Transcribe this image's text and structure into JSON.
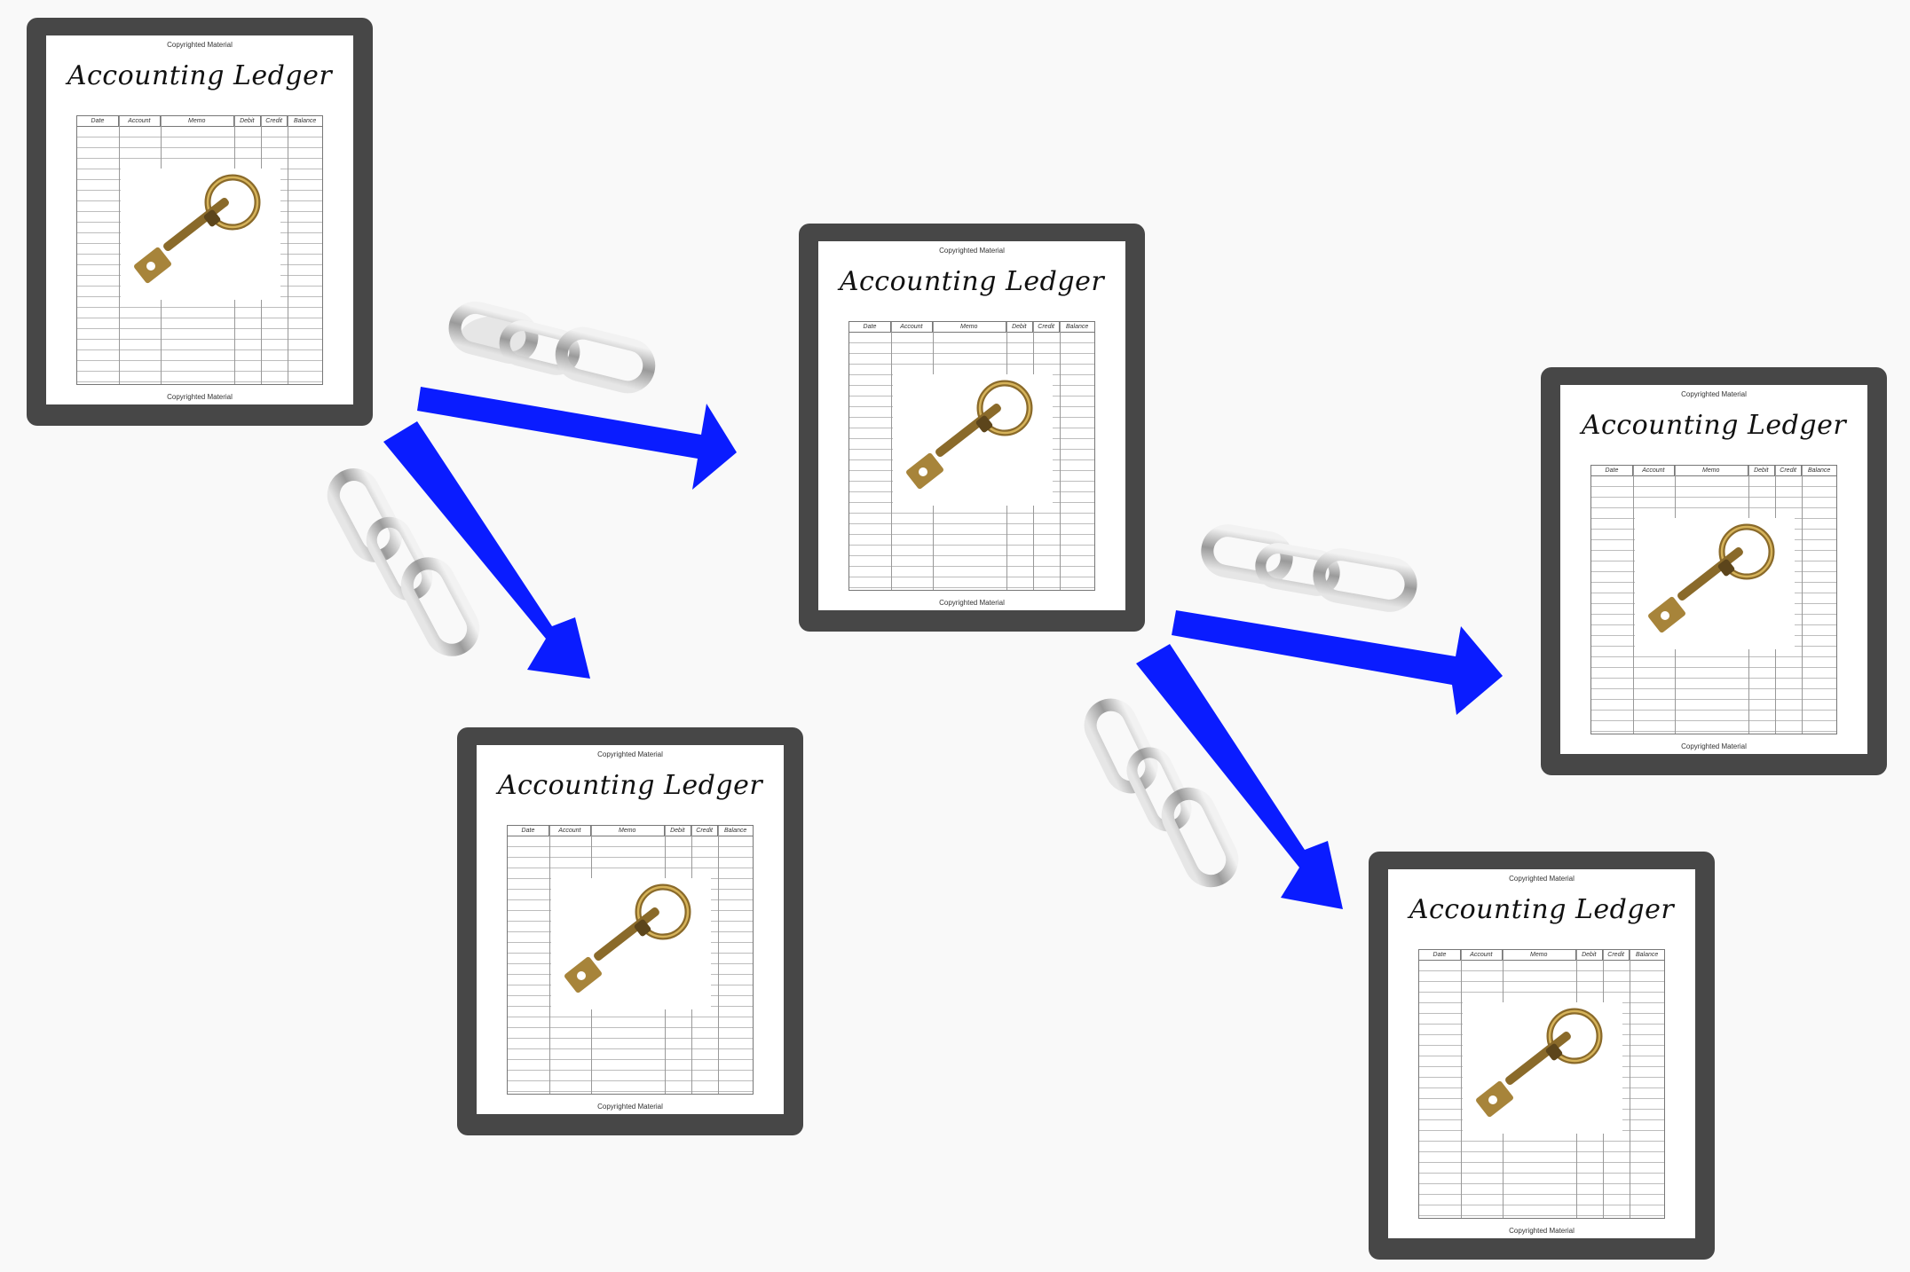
{
  "ledger": {
    "copyright": "Copyrighted Material",
    "title": "Accounting Ledger",
    "columns": [
      "Date",
      "Account",
      "Memo",
      "Debit",
      "Credit",
      "Balance"
    ]
  },
  "colors": {
    "arrow": "#0a1cff",
    "frame": "#474747",
    "chain": "#b8b8b8",
    "key": "#8a6a2a"
  },
  "icons": [
    "key-icon",
    "chain-link-icon",
    "arrow-icon"
  ]
}
